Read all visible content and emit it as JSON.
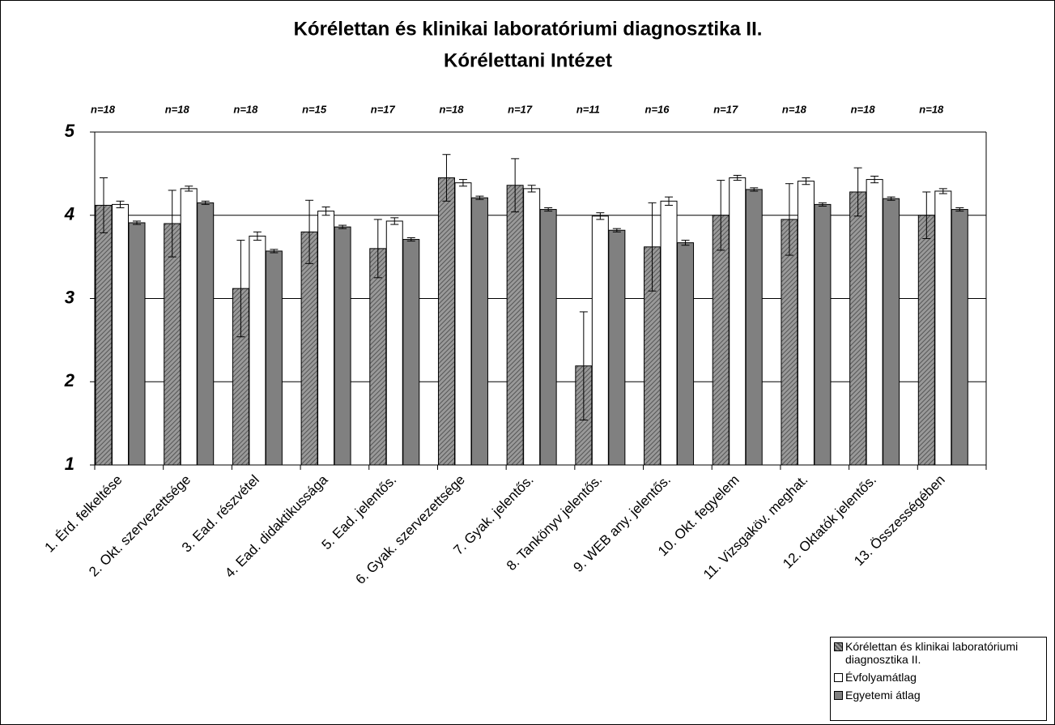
{
  "chart_data": {
    "type": "bar",
    "title": "Kórélettan és klinikai laboratóriumi diagnosztika II.",
    "subtitle": "Kórélettani Intézet",
    "categories": [
      "1. Érd. felkeltése",
      "2. Okt. szervezettsége",
      "3. Ead. részvétel",
      "4. Ead. didaktikussága",
      "5. Ead. jelentős.",
      "6. Gyak. szervezettsége",
      "7. Gyak. jelentős.",
      "8. Tankönyv jelentős.",
      "9. WEB any. jelentős.",
      "10. Okt. fegyelem",
      "11. Vizsgaköv. meghat.",
      "12. Oktatók jelentős.",
      "13. Összességében"
    ],
    "annotations": [
      "n=18",
      "n=18",
      "n=18",
      "n=15",
      "n=17",
      "n=18",
      "n=17",
      "n=11",
      "n=16",
      "n=17",
      "n=18",
      "n=18",
      "n=18"
    ],
    "series": [
      {
        "name": "Kórélettan és klinikai laboratóriumi diagnosztika II.",
        "color": "#555555",
        "hatch": true,
        "values": [
          4.12,
          3.9,
          3.12,
          3.8,
          3.6,
          4.45,
          4.36,
          2.19,
          3.62,
          4.0,
          3.95,
          4.28,
          4.0
        ],
        "errors": [
          0.33,
          0.4,
          0.58,
          0.38,
          0.35,
          0.28,
          0.32,
          0.65,
          0.53,
          0.42,
          0.43,
          0.29,
          0.28
        ]
      },
      {
        "name": "Évfolyamátlag",
        "color": "#ffffff",
        "values": [
          4.13,
          4.32,
          3.75,
          4.05,
          3.93,
          4.39,
          4.32,
          3.99,
          4.17,
          4.45,
          4.41,
          4.43,
          4.29
        ],
        "errors": [
          0.04,
          0.03,
          0.05,
          0.05,
          0.04,
          0.04,
          0.04,
          0.04,
          0.05,
          0.03,
          0.04,
          0.04,
          0.03
        ]
      },
      {
        "name": "Egyetemi átlag",
        "color": "#808080",
        "values": [
          3.91,
          4.15,
          3.57,
          3.86,
          3.71,
          4.21,
          4.07,
          3.82,
          3.67,
          4.31,
          4.13,
          4.2,
          4.07
        ],
        "errors": [
          0.02,
          0.02,
          0.02,
          0.02,
          0.02,
          0.02,
          0.02,
          0.02,
          0.03,
          0.02,
          0.02,
          0.02,
          0.02
        ]
      }
    ],
    "ylim": [
      1,
      5
    ],
    "yticks": [
      1,
      2,
      3,
      4,
      5
    ],
    "grid": true,
    "legend": "lower right"
  }
}
